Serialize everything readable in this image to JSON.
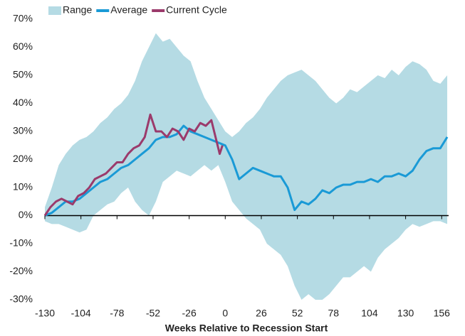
{
  "chart_data": {
    "type": "line",
    "xlabel": "Weeks Relative to Recession Start",
    "xlim": [
      -130,
      161
    ],
    "ylim": [
      -30,
      70
    ],
    "xticks": [
      -130,
      -104,
      -78,
      -52,
      -26,
      0,
      26,
      52,
      78,
      104,
      130,
      156
    ],
    "yticks": [
      {
        "value": -30,
        "label": "-30%"
      },
      {
        "value": -20,
        "label": "-20%"
      },
      {
        "value": -10,
        "label": "-10%"
      },
      {
        "value": 0,
        "label": "0%"
      },
      {
        "value": 10,
        "label": "10%"
      },
      {
        "value": 20,
        "label": "20%"
      },
      {
        "value": 30,
        "label": "30%"
      },
      {
        "value": 40,
        "label": "40%"
      },
      {
        "value": 50,
        "label": "50%"
      },
      {
        "value": 60,
        "label": "60%"
      },
      {
        "value": 70,
        "label": "70%"
      }
    ],
    "legend": "top-left",
    "series": [
      {
        "name": "Range",
        "kind": "band",
        "color": "#b5dbe4",
        "x": [
          -130,
          -125,
          -120,
          -115,
          -110,
          -105,
          -100,
          -95,
          -90,
          -85,
          -80,
          -75,
          -70,
          -65,
          -60,
          -55,
          -50,
          -45,
          -40,
          -35,
          -30,
          -25,
          -20,
          -15,
          -10,
          -5,
          0,
          5,
          10,
          15,
          20,
          25,
          30,
          35,
          40,
          45,
          50,
          55,
          60,
          65,
          70,
          75,
          80,
          85,
          90,
          95,
          100,
          105,
          110,
          115,
          120,
          125,
          130,
          135,
          140,
          145,
          150,
          155,
          160
        ],
        "upper": [
          3,
          10,
          18,
          22,
          25,
          27,
          28,
          30,
          33,
          35,
          38,
          40,
          43,
          48,
          55,
          60,
          65,
          62,
          63,
          60,
          57,
          55,
          48,
          42,
          38,
          34,
          30,
          28,
          30,
          33,
          35,
          38,
          42,
          45,
          48,
          50,
          51,
          52,
          50,
          48,
          45,
          42,
          40,
          42,
          45,
          44,
          46,
          48,
          50,
          49,
          52,
          50,
          53,
          55,
          54,
          52,
          48,
          47,
          50
        ],
        "lower": [
          -2,
          -3,
          -3,
          -4,
          -5,
          -6,
          -5,
          0,
          2,
          4,
          5,
          8,
          10,
          5,
          2,
          0,
          5,
          12,
          14,
          16,
          15,
          14,
          16,
          18,
          16,
          18,
          12,
          5,
          2,
          -1,
          -3,
          -5,
          -10,
          -12,
          -14,
          -18,
          -25,
          -30,
          -28,
          -30,
          -30,
          -28,
          -25,
          -22,
          -22,
          -20,
          -18,
          -20,
          -15,
          -12,
          -10,
          -8,
          -5,
          -3,
          -4,
          -3,
          -2,
          -2,
          -3
        ]
      },
      {
        "name": "Average",
        "kind": "line",
        "color": "#1a9ad6",
        "x": [
          -130,
          -125,
          -120,
          -115,
          -110,
          -105,
          -100,
          -95,
          -90,
          -85,
          -80,
          -75,
          -70,
          -65,
          -60,
          -55,
          -50,
          -45,
          -40,
          -35,
          -30,
          -25,
          -20,
          -15,
          -10,
          -5,
          0,
          5,
          10,
          15,
          20,
          25,
          30,
          35,
          40,
          45,
          50,
          55,
          60,
          65,
          70,
          75,
          80,
          85,
          90,
          95,
          100,
          105,
          110,
          115,
          120,
          125,
          130,
          135,
          140,
          145,
          150,
          155,
          160
        ],
        "values": [
          0,
          1,
          3,
          5,
          5,
          6,
          8,
          10,
          12,
          13,
          15,
          17,
          18,
          20,
          22,
          24,
          27,
          28,
          28,
          29,
          32,
          30,
          29,
          28,
          27,
          26,
          25,
          20,
          13,
          15,
          17,
          16,
          15,
          14,
          14,
          10,
          2,
          5,
          4,
          6,
          9,
          8,
          10,
          11,
          11,
          12,
          12,
          13,
          12,
          14,
          14,
          15,
          14,
          16,
          20,
          23,
          24,
          24,
          28
        ]
      },
      {
        "name": "Current Cycle",
        "kind": "line",
        "color": "#9b3a6b",
        "x": [
          -130,
          -126,
          -122,
          -118,
          -114,
          -110,
          -106,
          -102,
          -98,
          -94,
          -90,
          -86,
          -82,
          -78,
          -74,
          -70,
          -66,
          -62,
          -58,
          -54,
          -50,
          -46,
          -42,
          -38,
          -34,
          -30,
          -26,
          -22,
          -18,
          -14,
          -10,
          -6,
          -4,
          -2
        ],
        "values": [
          0,
          3,
          5,
          6,
          5,
          4,
          7,
          8,
          10,
          13,
          14,
          15,
          17,
          19,
          19,
          22,
          24,
          25,
          28,
          36,
          30,
          30,
          28,
          31,
          30,
          27,
          31,
          30,
          33,
          32,
          34,
          26,
          22,
          25
        ]
      }
    ]
  }
}
